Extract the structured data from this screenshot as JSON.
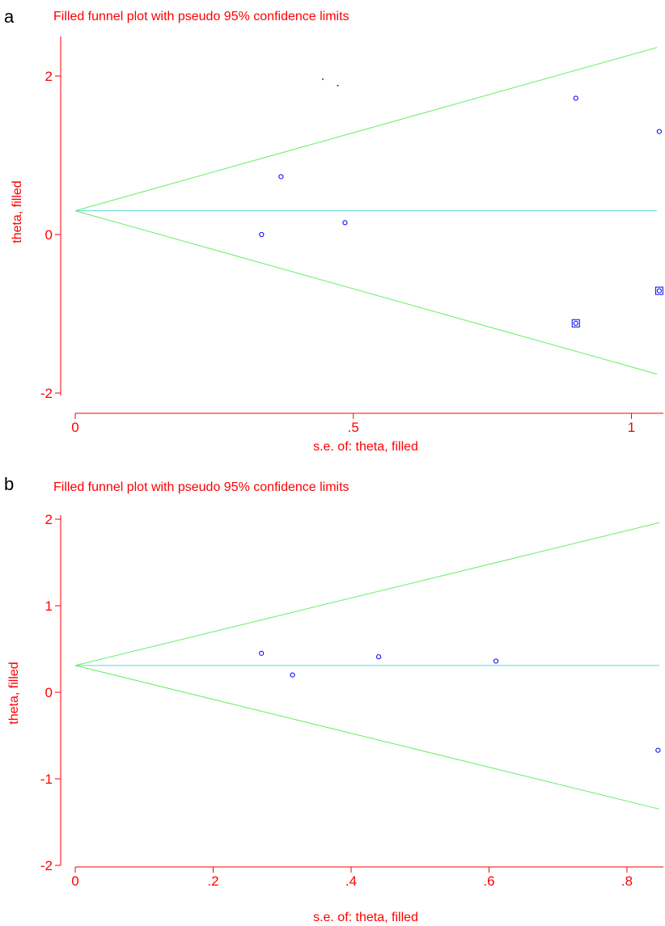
{
  "chart_data": [
    {
      "panel": "a",
      "type": "scatter",
      "title": "Filled funnel plot with pseudo 95% confidence limits",
      "xlabel": "s.e. of: theta, filled",
      "ylabel": "theta, filled",
      "xlim": [
        0,
        1.05
      ],
      "ylim": [
        -2,
        2.3
      ],
      "x_ticks": [
        0,
        0.5,
        1
      ],
      "x_tick_labels": [
        "0",
        ".5",
        "1"
      ],
      "y_ticks": [
        -2,
        0,
        2
      ],
      "y_tick_labels": [
        "-2",
        "0",
        "2"
      ],
      "pooled_estimate": 0.3,
      "ci_upper_end": 2.36,
      "ci_lower_end": -1.76,
      "points": [
        {
          "x": 0.335,
          "y": 0.0,
          "filled": false
        },
        {
          "x": 0.37,
          "y": 0.73,
          "filled": false
        },
        {
          "x": 0.485,
          "y": 0.15,
          "filled": false
        },
        {
          "x": 0.9,
          "y": 1.72,
          "filled": false
        },
        {
          "x": 1.05,
          "y": 1.3,
          "filled": false
        },
        {
          "x": 0.9,
          "y": -1.12,
          "filled": true
        },
        {
          "x": 1.05,
          "y": -0.71,
          "filled": true
        }
      ],
      "stray_marks": [
        {
          "x": 0.445,
          "y": 1.96
        },
        {
          "x": 0.472,
          "y": 1.88
        }
      ],
      "grid": false,
      "colors": {
        "text": "#ff0000",
        "points": "#0000ff",
        "ci": "#66ee66",
        "pooled": "#55dddd"
      }
    },
    {
      "panel": "b",
      "type": "scatter",
      "title": "Filled funnel plot with pseudo 95% confidence limits",
      "xlabel": "s.e. of: theta, filled",
      "ylabel": "theta, filled",
      "xlim": [
        0,
        0.85
      ],
      "ylim": [
        -2,
        2
      ],
      "x_ticks": [
        0,
        0.2,
        0.4,
        0.6,
        0.8
      ],
      "x_tick_labels": [
        "0",
        ".2",
        ".4",
        ".6",
        ".8"
      ],
      "y_ticks": [
        -2,
        -1,
        0,
        1,
        2
      ],
      "y_tick_labels": [
        "-2",
        "-1",
        "0",
        "1",
        "2"
      ],
      "pooled_estimate": 0.31,
      "ci_upper_end": 1.96,
      "ci_lower_end": -1.35,
      "points": [
        {
          "x": 0.27,
          "y": 0.45,
          "filled": false
        },
        {
          "x": 0.315,
          "y": 0.2,
          "filled": false
        },
        {
          "x": 0.44,
          "y": 0.41,
          "filled": false
        },
        {
          "x": 0.61,
          "y": 0.36,
          "filled": false
        },
        {
          "x": 0.845,
          "y": -0.67,
          "filled": false
        }
      ],
      "stray_marks": [],
      "grid": false,
      "colors": {
        "text": "#ff0000",
        "points": "#0000ff",
        "ci": "#66ee66",
        "pooled": "#55dddd"
      }
    }
  ]
}
